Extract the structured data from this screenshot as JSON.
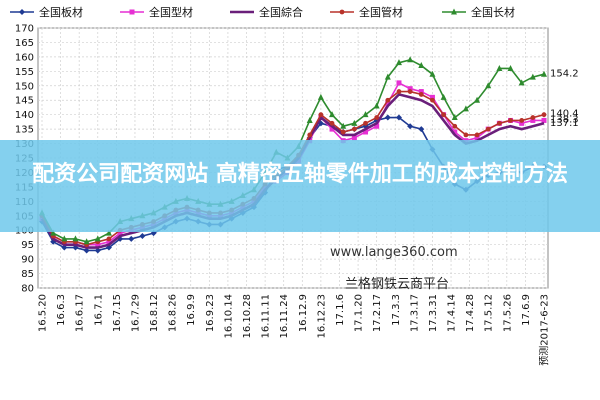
{
  "banner": {
    "text": "配资公司配资网站 高精密五轴零件加工的成本控制方法"
  },
  "watermark": {
    "text": "www.lange360.com"
  },
  "platform": {
    "text": "兰格钢铁云商平台"
  },
  "chart_data": {
    "type": "line",
    "ylim": [
      80,
      170
    ],
    "yticks": [
      80,
      85,
      90,
      95,
      100,
      105,
      110,
      115,
      120,
      125,
      130,
      135,
      140,
      145,
      150,
      155,
      160,
      165,
      170
    ],
    "xtick_labels": [
      "16.5.20",
      "16.6.3",
      "16.6.17",
      "16.7.1",
      "16.7.15",
      "16.7.29",
      "16.8.12",
      "16.8.26",
      "16.9.9",
      "16.9.23",
      "16.10.14",
      "16.10.28",
      "16.11.11",
      "16.11.24",
      "16.12.9",
      "16.12.23",
      "17.1.6",
      "17.1.20",
      "17.2.17",
      "17.3.3",
      "17.3.17",
      "17.3.31",
      "17.4.14",
      "17.4.28",
      "17.5.12",
      "17.5.26",
      "17.6.9",
      "预测2017-6-23"
    ],
    "grid": true,
    "legend_position": "top",
    "end_labels": [
      {
        "text": "154.2",
        "y": 154.2,
        "color": "#111111"
      },
      {
        "text": "140.4",
        "y": 140.4,
        "color": "#111111"
      },
      {
        "text": "138.3",
        "y": 138.3,
        "color": "#111111"
      },
      {
        "text": "137.1",
        "y": 137.1,
        "color": "#111111"
      }
    ],
    "series": [
      {
        "name": "全国板材",
        "color": "#1f3a93",
        "marker": "diamond",
        "values": [
          103,
          96,
          94,
          94,
          93,
          93,
          94,
          97,
          97,
          98,
          99,
          101,
          103,
          104,
          103,
          102,
          102,
          104,
          106,
          108,
          113,
          121,
          122,
          125,
          132,
          137,
          136,
          134,
          135,
          136,
          138,
          139,
          139,
          136,
          135,
          128,
          122,
          116,
          114,
          117,
          119,
          120,
          121,
          120,
          122,
          122
        ]
      },
      {
        "name": "全国型材",
        "color": "#e62fd3",
        "marker": "square",
        "values": [
          104,
          98,
          96,
          96,
          95,
          95,
          96,
          99,
          100,
          101,
          102,
          104,
          106,
          107,
          106,
          105,
          105,
          106,
          108,
          110,
          115,
          117,
          120,
          124,
          131,
          139,
          135,
          131,
          132,
          134,
          136,
          144,
          151,
          149,
          148,
          146,
          140,
          134,
          131,
          132,
          135,
          137,
          138,
          137,
          138,
          138
        ]
      },
      {
        "name": "全国綜合",
        "color": "#6a1f7a",
        "marker": "none",
        "values": [
          104,
          97,
          95,
          95,
          94,
          94,
          95,
          98,
          99,
          100,
          101,
          103,
          105,
          106,
          105,
          104,
          104,
          105,
          107,
          109,
          114,
          118,
          121,
          125,
          132,
          139,
          136,
          133,
          133,
          135,
          137,
          143,
          147,
          146,
          145,
          143,
          138,
          133,
          130,
          131,
          133,
          135,
          136,
          135,
          136,
          137
        ]
      },
      {
        "name": "全国管材",
        "color": "#b8322a",
        "marker": "circle",
        "values": [
          105,
          98,
          96,
          96,
          95,
          96,
          97,
          100,
          101,
          102,
          103,
          105,
          107,
          108,
          107,
          106,
          106,
          107,
          109,
          111,
          116,
          119,
          122,
          126,
          133,
          140,
          137,
          134,
          135,
          137,
          139,
          145,
          148,
          148,
          147,
          145,
          140,
          136,
          133,
          133,
          135,
          137,
          138,
          138,
          139,
          140
        ]
      },
      {
        "name": "全国长材",
        "color": "#2e8b2e",
        "marker": "triangle",
        "values": [
          106,
          99,
          97,
          97,
          96,
          97,
          99,
          103,
          104,
          105,
          106,
          108,
          110,
          111,
          110,
          109,
          109,
          110,
          112,
          114,
          120,
          127,
          125,
          129,
          138,
          146,
          140,
          136,
          137,
          140,
          143,
          153,
          158,
          159,
          157,
          154,
          146,
          139,
          142,
          145,
          150,
          156,
          156,
          151,
          153,
          154
        ]
      }
    ]
  }
}
